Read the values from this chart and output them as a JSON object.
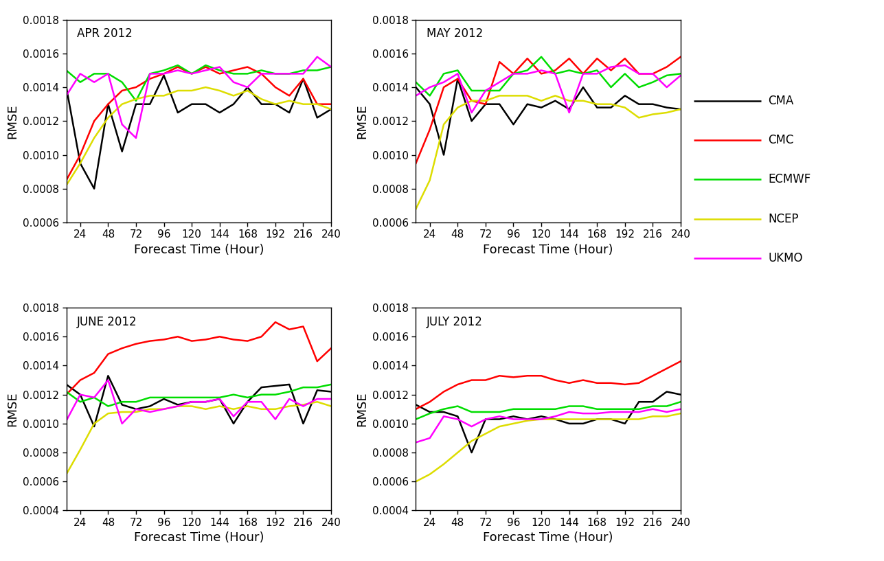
{
  "x_ticks": [
    24,
    48,
    72,
    96,
    120,
    144,
    168,
    192,
    216,
    240
  ],
  "x_values": [
    12,
    24,
    36,
    48,
    60,
    72,
    84,
    96,
    108,
    120,
    132,
    144,
    156,
    168,
    180,
    192,
    204,
    216,
    228,
    240
  ],
  "panels": [
    {
      "title": "APR 2012",
      "ylim": [
        0.0006,
        0.0018
      ],
      "yticks": [
        0.0006,
        0.0008,
        0.001,
        0.0012,
        0.0014,
        0.0016,
        0.0018
      ],
      "CMA": [
        0.0014,
        0.00095,
        0.0008,
        0.0013,
        0.00102,
        0.0013,
        0.0013,
        0.00147,
        0.00125,
        0.0013,
        0.0013,
        0.00125,
        0.0013,
        0.0014,
        0.0013,
        0.0013,
        0.00125,
        0.00145,
        0.00122,
        0.00127
      ],
      "CMC": [
        0.00085,
        0.001,
        0.0012,
        0.0013,
        0.00138,
        0.0014,
        0.00145,
        0.00148,
        0.00152,
        0.00148,
        0.00152,
        0.00148,
        0.0015,
        0.00152,
        0.00148,
        0.0014,
        0.00135,
        0.00145,
        0.0013,
        0.0013
      ],
      "ECMWF": [
        0.0015,
        0.00143,
        0.00148,
        0.00148,
        0.00143,
        0.00132,
        0.00148,
        0.0015,
        0.00153,
        0.00148,
        0.00153,
        0.0015,
        0.00148,
        0.00148,
        0.0015,
        0.00148,
        0.00148,
        0.0015,
        0.0015,
        0.00152
      ],
      "NCEP": [
        0.00082,
        0.00095,
        0.0011,
        0.00122,
        0.0013,
        0.00133,
        0.00135,
        0.00135,
        0.00138,
        0.00138,
        0.0014,
        0.00138,
        0.00135,
        0.00138,
        0.00133,
        0.0013,
        0.00132,
        0.0013,
        0.0013,
        0.00127
      ],
      "UKMO": [
        0.00135,
        0.00148,
        0.00143,
        0.00148,
        0.00118,
        0.0011,
        0.00148,
        0.00148,
        0.0015,
        0.00148,
        0.0015,
        0.00152,
        0.00143,
        0.0014,
        0.00148,
        0.00148,
        0.00148,
        0.00148,
        0.00158,
        0.00152
      ]
    },
    {
      "title": "MAY 2012",
      "ylim": [
        0.0006,
        0.0018
      ],
      "yticks": [
        0.0006,
        0.0008,
        0.001,
        0.0012,
        0.0014,
        0.0016,
        0.0018
      ],
      "CMA": [
        0.0014,
        0.0013,
        0.001,
        0.00145,
        0.0012,
        0.0013,
        0.0013,
        0.00118,
        0.0013,
        0.00128,
        0.00132,
        0.00127,
        0.0014,
        0.00128,
        0.00128,
        0.00135,
        0.0013,
        0.0013,
        0.00128,
        0.00127
      ],
      "CMC": [
        0.00095,
        0.00115,
        0.0014,
        0.00145,
        0.00132,
        0.0013,
        0.00155,
        0.00148,
        0.00157,
        0.00148,
        0.0015,
        0.00157,
        0.00148,
        0.00157,
        0.0015,
        0.00157,
        0.00148,
        0.00148,
        0.00152,
        0.00158
      ],
      "ECMWF": [
        0.00143,
        0.00135,
        0.00148,
        0.0015,
        0.00138,
        0.00138,
        0.00138,
        0.00148,
        0.0015,
        0.00158,
        0.00148,
        0.0015,
        0.00148,
        0.0015,
        0.0014,
        0.00148,
        0.0014,
        0.00143,
        0.00147,
        0.00148
      ],
      "NCEP": [
        0.00068,
        0.00085,
        0.00118,
        0.00128,
        0.00132,
        0.00132,
        0.00135,
        0.00135,
        0.00135,
        0.00132,
        0.00135,
        0.00132,
        0.00132,
        0.0013,
        0.0013,
        0.00128,
        0.00122,
        0.00124,
        0.00125,
        0.00127
      ],
      "UKMO": [
        0.00135,
        0.0014,
        0.00143,
        0.00148,
        0.00125,
        0.00138,
        0.00143,
        0.00148,
        0.00148,
        0.0015,
        0.00148,
        0.00125,
        0.00148,
        0.00148,
        0.00152,
        0.00153,
        0.00148,
        0.00148,
        0.0014,
        0.00147
      ]
    },
    {
      "title": "JUNE 2012",
      "ylim": [
        0.0004,
        0.0018
      ],
      "yticks": [
        0.0004,
        0.0006,
        0.0008,
        0.001,
        0.0012,
        0.0014,
        0.0016,
        0.0018
      ],
      "CMA": [
        0.00127,
        0.0012,
        0.00098,
        0.00133,
        0.00113,
        0.0011,
        0.00112,
        0.00117,
        0.00113,
        0.00115,
        0.00115,
        0.00117,
        0.001,
        0.00115,
        0.00125,
        0.00126,
        0.00127,
        0.001,
        0.00123,
        0.00122
      ],
      "CMC": [
        0.0012,
        0.0013,
        0.00135,
        0.00148,
        0.00152,
        0.00155,
        0.00157,
        0.00158,
        0.0016,
        0.00157,
        0.00158,
        0.0016,
        0.00158,
        0.00157,
        0.0016,
        0.0017,
        0.00165,
        0.00167,
        0.00143,
        0.00152
      ],
      "ECMWF": [
        0.00122,
        0.00115,
        0.00118,
        0.00112,
        0.00115,
        0.00115,
        0.00118,
        0.00118,
        0.00118,
        0.00118,
        0.00118,
        0.00118,
        0.0012,
        0.00118,
        0.0012,
        0.0012,
        0.00122,
        0.00125,
        0.00125,
        0.00127
      ],
      "NCEP": [
        0.00065,
        0.00082,
        0.001,
        0.00107,
        0.00108,
        0.00108,
        0.0011,
        0.0011,
        0.00112,
        0.00112,
        0.0011,
        0.00112,
        0.0011,
        0.00112,
        0.0011,
        0.0011,
        0.00112,
        0.00113,
        0.00115,
        0.00112
      ],
      "UKMO": [
        0.00102,
        0.0012,
        0.00118,
        0.0013,
        0.001,
        0.0011,
        0.00108,
        0.0011,
        0.00112,
        0.00115,
        0.00115,
        0.00117,
        0.00105,
        0.00115,
        0.00115,
        0.00103,
        0.00117,
        0.00112,
        0.00117,
        0.00117
      ]
    },
    {
      "title": "JULY 2012",
      "ylim": [
        0.0004,
        0.0018
      ],
      "yticks": [
        0.0004,
        0.0006,
        0.0008,
        0.001,
        0.0012,
        0.0014,
        0.0016,
        0.0018
      ],
      "CMA": [
        0.00113,
        0.00108,
        0.00108,
        0.00105,
        0.0008,
        0.00103,
        0.00103,
        0.00105,
        0.00103,
        0.00105,
        0.00103,
        0.001,
        0.001,
        0.00103,
        0.00103,
        0.001,
        0.00115,
        0.00115,
        0.00122,
        0.0012
      ],
      "CMC": [
        0.0011,
        0.00115,
        0.00122,
        0.00127,
        0.0013,
        0.0013,
        0.00133,
        0.00132,
        0.00133,
        0.00133,
        0.0013,
        0.00128,
        0.0013,
        0.00128,
        0.00128,
        0.00127,
        0.00128,
        0.00133,
        0.00138,
        0.00143
      ],
      "ECMWF": [
        0.00103,
        0.00107,
        0.0011,
        0.00112,
        0.00108,
        0.00108,
        0.00108,
        0.0011,
        0.0011,
        0.0011,
        0.0011,
        0.00112,
        0.00112,
        0.0011,
        0.0011,
        0.0011,
        0.0011,
        0.00112,
        0.00112,
        0.00115
      ],
      "NCEP": [
        0.0006,
        0.00065,
        0.00072,
        0.0008,
        0.00088,
        0.00093,
        0.00098,
        0.001,
        0.00102,
        0.00103,
        0.00103,
        0.00103,
        0.00103,
        0.00103,
        0.00103,
        0.00103,
        0.00103,
        0.00105,
        0.00105,
        0.00107
      ],
      "UKMO": [
        0.00087,
        0.0009,
        0.00105,
        0.00103,
        0.00098,
        0.00103,
        0.00105,
        0.00103,
        0.00103,
        0.00103,
        0.00105,
        0.00108,
        0.00107,
        0.00107,
        0.00108,
        0.00108,
        0.00108,
        0.0011,
        0.00108,
        0.0011
      ]
    }
  ],
  "colors": {
    "CMA": "#000000",
    "CMC": "#ff0000",
    "ECMWF": "#00dd00",
    "NCEP": "#dddd00",
    "UKMO": "#ff00ff"
  },
  "legend_labels": [
    "CMA",
    "CMC",
    "ECMWF",
    "NCEP",
    "UKMO"
  ],
  "xlabel": "Forecast Time (Hour)",
  "ylabel": "RMSE",
  "linewidth": 1.8,
  "tick_fontsize": 11,
  "label_fontsize": 13,
  "title_fontsize": 12
}
